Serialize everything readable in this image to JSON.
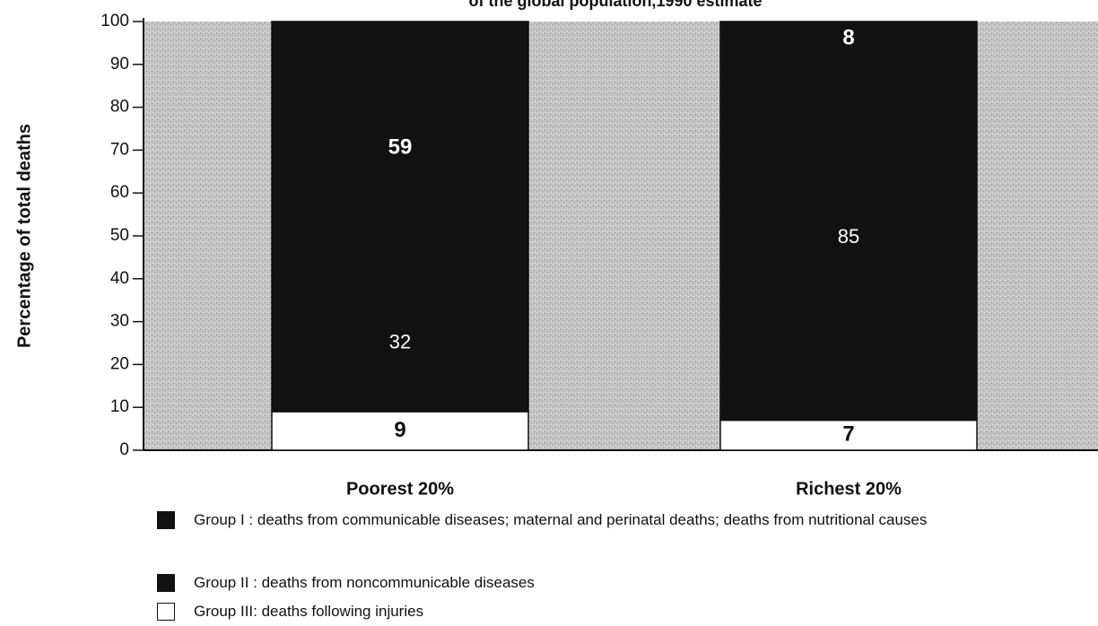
{
  "chart_data": {
    "type": "stacked-bar",
    "title": "of the global population,1990 estimate",
    "y_label": "Percentage of total deaths",
    "categories": [
      "Poorest 20%",
      "Richest 20%"
    ],
    "series": [
      {
        "name": "Group I  : deaths from communicable diseases; maternal and perinatal deaths; deaths from nutritional causes",
        "color": "#111111",
        "values": [
          59,
          8
        ]
      },
      {
        "name": "Group II : deaths from noncommunicable diseases",
        "color": "#111111",
        "values": [
          32,
          85
        ]
      },
      {
        "name": "Group III: deaths following injuries",
        "color": "#ffffff",
        "values": [
          9,
          7
        ]
      }
    ],
    "ylim": [
      0,
      100
    ],
    "yticks": [
      0,
      10,
      20,
      30,
      40,
      50,
      60,
      70,
      80,
      90,
      100
    ]
  }
}
